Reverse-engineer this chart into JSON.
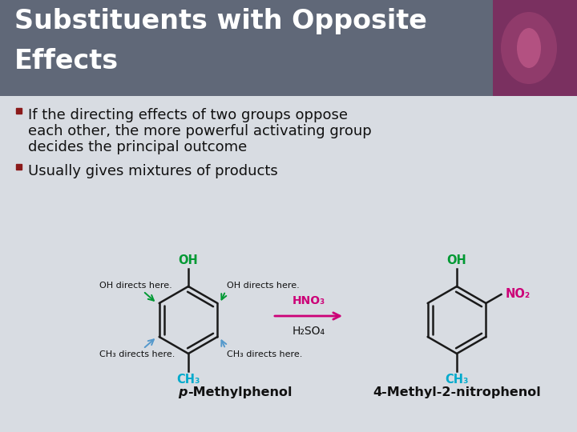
{
  "title_line1": "Substituents with Opposite",
  "title_line2": "Effects",
  "title_bg_color": "#606878",
  "title_text_color": "#ffffff",
  "slide_bg_color": "#d8dce2",
  "bullet1_line1": "If the directing effects of two groups oppose",
  "bullet1_line2": "each other, the more powerful activating group",
  "bullet1_line3": "decides the principal outcome",
  "bullet2": "Usually gives mixtures of products",
  "bullet_color": "#8b1a1a",
  "text_color": "#111111",
  "oh_color": "#009933",
  "ch3_color": "#00aacc",
  "no2_color": "#cc0077",
  "oh_arrow_color": "#009933",
  "ch3_arrow_color": "#5599cc",
  "reaction_arrow_color": "#cc0077",
  "bond_color": "#1a1a1a",
  "label_color": "#111111",
  "name1_italic": "p",
  "name1_rest": "-Methylphenol",
  "name2": "4-Methyl-2-nitrophenol",
  "reagents_line1": "HNO₃",
  "reagents_line2": "H₂SO₄",
  "reagent_color": "#cc0077",
  "orchid_color": "#7a3060",
  "title_bar_height": 120
}
